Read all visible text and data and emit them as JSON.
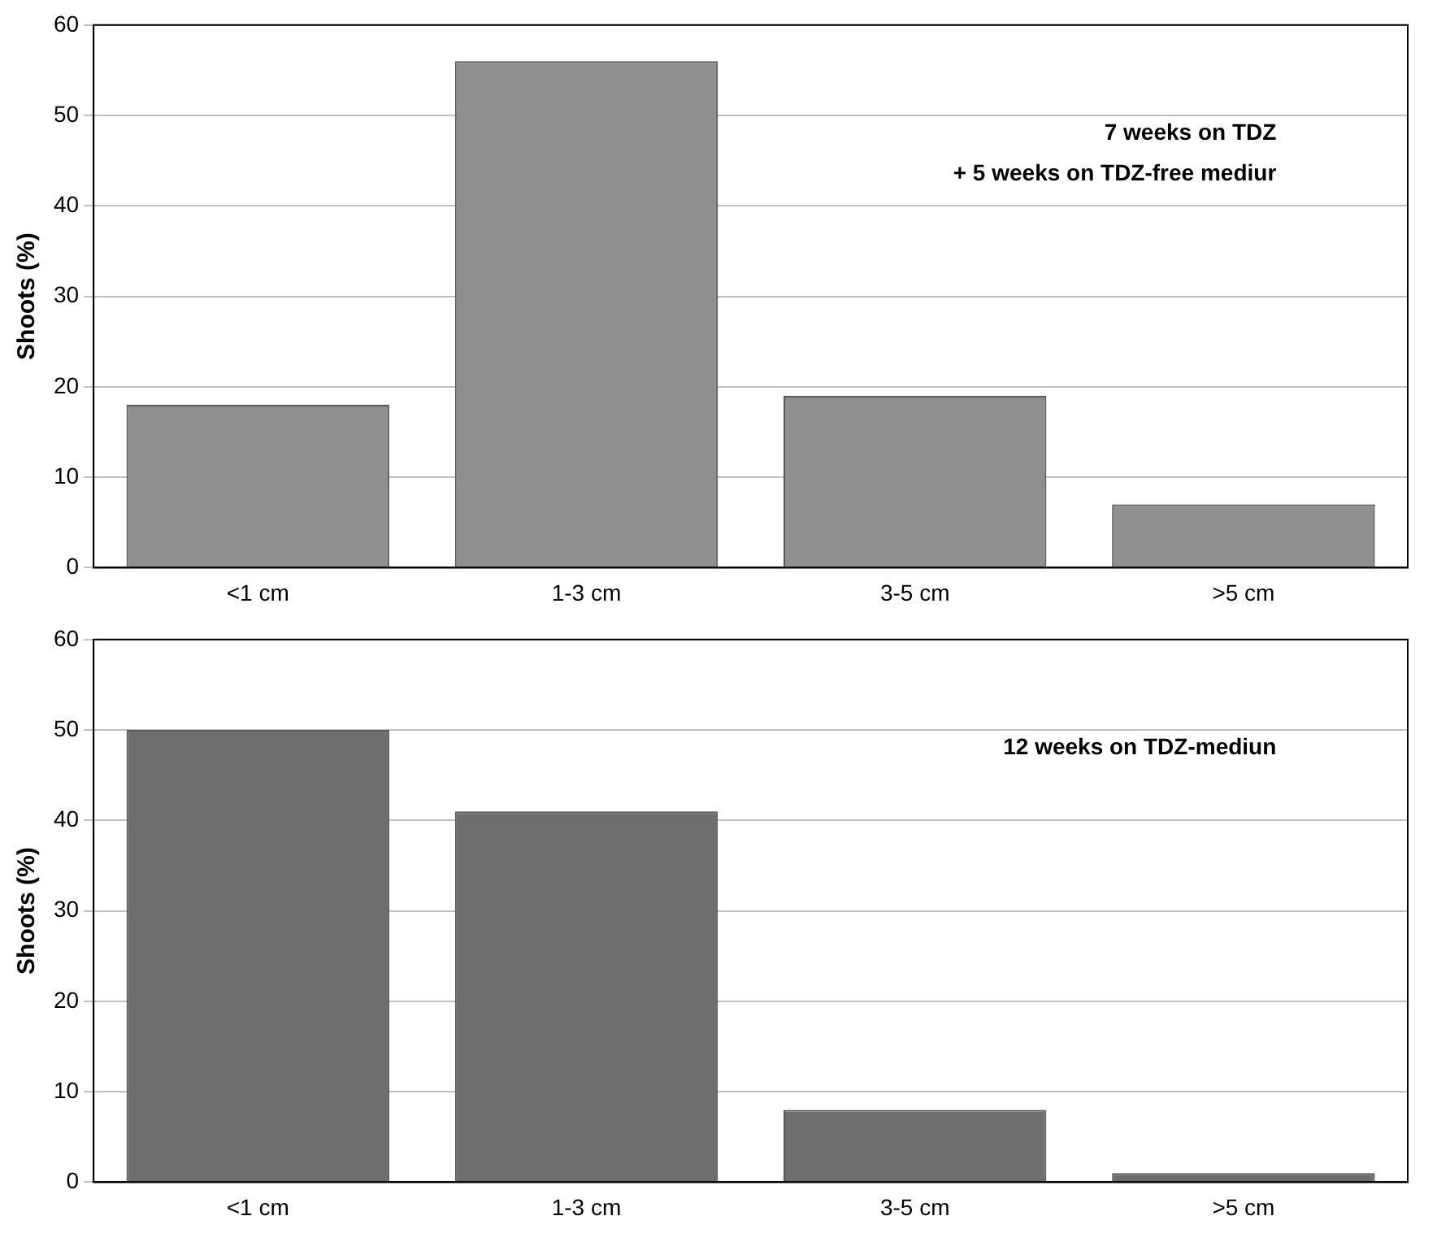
{
  "chart_data": [
    {
      "type": "bar",
      "ylabel": "Shoots (%)",
      "categories": [
        "<1 cm",
        "1-3 cm",
        "3-5 cm",
        ">5 cm"
      ],
      "series": [
        {
          "color": "#8f8f8f",
          "values": [
            18,
            56,
            19,
            7
          ]
        }
      ],
      "ylim": [
        0,
        60
      ],
      "yticks": [
        0,
        10,
        20,
        30,
        40,
        50,
        60
      ],
      "grid": "y",
      "legend": false,
      "annotations": [
        "7 weeks on TDZ",
        "+ 5 weeks on TDZ-free mediur"
      ]
    },
    {
      "type": "bar",
      "ylabel": "Shoots (%)",
      "categories": [
        "<1 cm",
        "1-3 cm",
        "3-5 cm",
        ">5 cm"
      ],
      "series": [
        {
          "color": "#6e6e6e",
          "values": [
            50,
            41,
            8,
            1
          ]
        }
      ],
      "ylim": [
        0,
        60
      ],
      "yticks": [
        0,
        10,
        20,
        30,
        40,
        50,
        60
      ],
      "grid": "y",
      "legend": false,
      "annotations": [
        "12 weeks on TDZ-mediun"
      ]
    }
  ]
}
